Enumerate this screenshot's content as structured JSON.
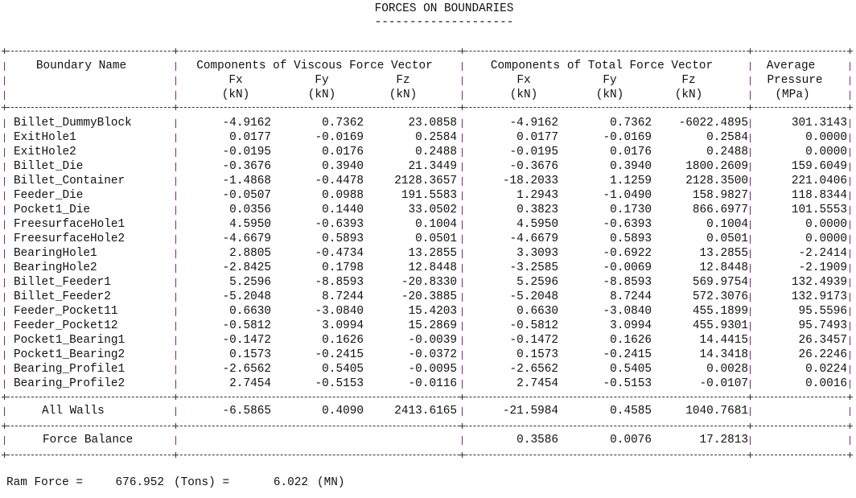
{
  "title": "FORCES ON BOUNDARIES",
  "title_underline": "--------------------",
  "headers": {
    "boundary_name": "Boundary Name",
    "viscous": "Components of Viscous Force Vector",
    "total": "Components of Total Force Vector",
    "pressure_1": "Average",
    "pressure_2": "Pressure",
    "pressure_unit": "(MPa)",
    "fx": "Fx",
    "fy": "Fy",
    "fz": "Fz",
    "unit": "(kN)"
  },
  "rows": [
    {
      "name": "Billet_DummyBlock",
      "vfx": "-4.9162",
      "vfy": "0.7362",
      "vfz": "23.0858",
      "tfx": "-4.9162",
      "tfy": "0.7362",
      "tfz": "-6022.4895",
      "p": "301.3143"
    },
    {
      "name": "ExitHole1",
      "vfx": "0.0177",
      "vfy": "-0.0169",
      "vfz": "0.2584",
      "tfx": "0.0177",
      "tfy": "-0.0169",
      "tfz": "0.2584",
      "p": "0.0000"
    },
    {
      "name": "ExitHole2",
      "vfx": "-0.0195",
      "vfy": "0.0176",
      "vfz": "0.2488",
      "tfx": "-0.0195",
      "tfy": "0.0176",
      "tfz": "0.2488",
      "p": "0.0000"
    },
    {
      "name": "Billet_Die",
      "vfx": "-0.3676",
      "vfy": "0.3940",
      "vfz": "21.3449",
      "tfx": "-0.3676",
      "tfy": "0.3940",
      "tfz": "1800.2609",
      "p": "159.6049"
    },
    {
      "name": "Billet_Container",
      "vfx": "-1.4868",
      "vfy": "-0.4478",
      "vfz": "2128.3657",
      "tfx": "-18.2033",
      "tfy": "1.1259",
      "tfz": "2128.3500",
      "p": "221.0406"
    },
    {
      "name": "Feeder_Die",
      "vfx": "-0.0507",
      "vfy": "0.0988",
      "vfz": "191.5583",
      "tfx": "1.2943",
      "tfy": "-1.0490",
      "tfz": "158.9827",
      "p": "118.8344"
    },
    {
      "name": "Pocket1_Die",
      "vfx": "0.0356",
      "vfy": "0.1440",
      "vfz": "33.0502",
      "tfx": "0.3823",
      "tfy": "0.1730",
      "tfz": "866.6977",
      "p": "101.5553"
    },
    {
      "name": "FreesurfaceHole1",
      "vfx": "4.5950",
      "vfy": "-0.6393",
      "vfz": "0.1004",
      "tfx": "4.5950",
      "tfy": "-0.6393",
      "tfz": "0.1004",
      "p": "0.0000"
    },
    {
      "name": "FreesurfaceHole2",
      "vfx": "-4.6679",
      "vfy": "0.5893",
      "vfz": "0.0501",
      "tfx": "-4.6679",
      "tfy": "0.5893",
      "tfz": "0.0501",
      "p": "0.0000"
    },
    {
      "name": "BearingHole1",
      "vfx": "2.8805",
      "vfy": "-0.4734",
      "vfz": "13.2855",
      "tfx": "3.3093",
      "tfy": "-0.6922",
      "tfz": "13.2855",
      "p": "-2.2414"
    },
    {
      "name": "BearingHole2",
      "vfx": "-2.8425",
      "vfy": "0.1798",
      "vfz": "12.8448",
      "tfx": "-3.2585",
      "tfy": "-0.0069",
      "tfz": "12.8448",
      "p": "-2.1909"
    },
    {
      "name": "Billet_Feeder1",
      "vfx": "5.2596",
      "vfy": "-8.8593",
      "vfz": "-20.8330",
      "tfx": "5.2596",
      "tfy": "-8.8593",
      "tfz": "569.9754",
      "p": "132.4939"
    },
    {
      "name": "Billet_Feeder2",
      "vfx": "-5.2048",
      "vfy": "8.7244",
      "vfz": "-20.3885",
      "tfx": "-5.2048",
      "tfy": "8.7244",
      "tfz": "572.3076",
      "p": "132.9173"
    },
    {
      "name": "Feeder_Pocket11",
      "vfx": "0.6630",
      "vfy": "-3.0840",
      "vfz": "15.4203",
      "tfx": "0.6630",
      "tfy": "-3.0840",
      "tfz": "455.1899",
      "p": "95.5596"
    },
    {
      "name": "Feeder_Pocket12",
      "vfx": "-0.5812",
      "vfy": "3.0994",
      "vfz": "15.2869",
      "tfx": "-0.5812",
      "tfy": "3.0994",
      "tfz": "455.9301",
      "p": "95.7493"
    },
    {
      "name": "Pocket1_Bearing1",
      "vfx": "-0.1472",
      "vfy": "0.1626",
      "vfz": "-0.0039",
      "tfx": "-0.1472",
      "tfy": "0.1626",
      "tfz": "14.4415",
      "p": "26.3457"
    },
    {
      "name": "Pocket1_Bearing2",
      "vfx": "0.1573",
      "vfy": "-0.2415",
      "vfz": "-0.0372",
      "tfx": "0.1573",
      "tfy": "-0.2415",
      "tfz": "14.3418",
      "p": "26.2246"
    },
    {
      "name": "Bearing_Profile1",
      "vfx": "-2.6562",
      "vfy": "0.5405",
      "vfz": "-0.0095",
      "tfx": "-2.6562",
      "tfy": "0.5405",
      "tfz": "0.0028",
      "p": "0.0224"
    },
    {
      "name": "Bearing_Profile2",
      "vfx": "2.7454",
      "vfy": "-0.5153",
      "vfz": "-0.0116",
      "tfx": "2.7454",
      "tfy": "-0.5153",
      "tfz": "-0.0107",
      "p": "0.0016"
    }
  ],
  "all_walls": {
    "name": "All Walls",
    "vfx": "-6.5865",
    "vfy": "0.4090",
    "vfz": "2413.6165",
    "tfx": "-21.5984",
    "tfy": "0.4585",
    "tfz": "1040.7681"
  },
  "force_balance": {
    "name": "Force Balance",
    "tfx": "0.3586",
    "tfy": "0.0076",
    "tfz": "17.2813"
  },
  "ram_force": {
    "label": "Ram Force =",
    "tons": "676.952",
    "tons_unit": "(Tons) =",
    "mn": "6.022",
    "mn_unit": "(MN)"
  }
}
